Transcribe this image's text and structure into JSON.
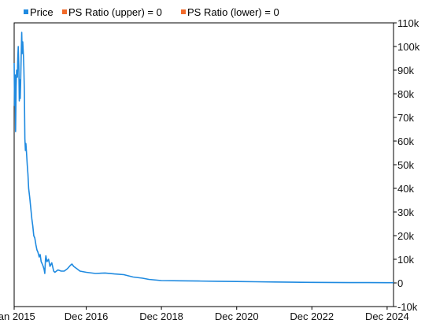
{
  "legend": [
    {
      "label": "Price",
      "color": "#1f8ae0"
    },
    {
      "label": "PS Ratio (upper) = 0",
      "color": "#f26b2b"
    },
    {
      "label": "PS Ratio (lower) = 0",
      "color": "#f26b2b"
    }
  ],
  "chart_data": {
    "type": "line",
    "title": "",
    "xlabel": "",
    "ylabel": "",
    "grid": false,
    "legend_position": "top-left",
    "x_tick_labels": [
      "Jan 2015",
      "Dec 2016",
      "Dec 2018",
      "Dec 2020",
      "Dec 2022",
      "Dec 2024"
    ],
    "x_tick_dates": [
      "2015-01-01",
      "2016-12-01",
      "2018-12-01",
      "2020-12-01",
      "2022-12-01",
      "2024-12-01"
    ],
    "xlim": [
      "2015-01-01",
      "2025-02-01"
    ],
    "y_tick_labels": [
      "110k",
      "100k",
      "90k",
      "80k",
      "70k",
      "60k",
      "50k",
      "40k",
      "30k",
      "20k",
      "10k",
      "0",
      "-10k"
    ],
    "y_tick_values": [
      110000,
      100000,
      90000,
      80000,
      70000,
      60000,
      50000,
      40000,
      30000,
      20000,
      10000,
      0,
      -10000
    ],
    "ylim": [
      -10000,
      110000
    ],
    "series": [
      {
        "name": "Price",
        "color": "#1f8ae0",
        "points": [
          [
            "2015-01-01",
            93000
          ],
          [
            "2015-01-05",
            75000
          ],
          [
            "2015-01-10",
            88000
          ],
          [
            "2015-01-15",
            64000
          ],
          [
            "2015-01-20",
            83000
          ],
          [
            "2015-01-25",
            90000
          ],
          [
            "2015-02-01",
            87000
          ],
          [
            "2015-02-05",
            95000
          ],
          [
            "2015-02-10",
            100000
          ],
          [
            "2015-02-15",
            92000
          ],
          [
            "2015-02-20",
            77000
          ],
          [
            "2015-02-25",
            86000
          ],
          [
            "2015-03-01",
            78000
          ],
          [
            "2015-03-05",
            84000
          ],
          [
            "2015-03-10",
            96000
          ],
          [
            "2015-03-15",
            106000
          ],
          [
            "2015-03-20",
            97000
          ],
          [
            "2015-03-25",
            102000
          ],
          [
            "2015-04-01",
            96000
          ],
          [
            "2015-04-05",
            91000
          ],
          [
            "2015-04-10",
            80000
          ],
          [
            "2015-04-15",
            61000
          ],
          [
            "2015-04-20",
            56000
          ],
          [
            "2015-04-25",
            59000
          ],
          [
            "2015-05-01",
            55000
          ],
          [
            "2015-05-08",
            50000
          ],
          [
            "2015-05-15",
            46000
          ],
          [
            "2015-05-22",
            40000
          ],
          [
            "2015-06-01",
            36000
          ],
          [
            "2015-06-08",
            33000
          ],
          [
            "2015-06-15",
            30000
          ],
          [
            "2015-06-22",
            27000
          ],
          [
            "2015-07-01",
            24000
          ],
          [
            "2015-07-10",
            20000
          ],
          [
            "2015-07-20",
            19000
          ],
          [
            "2015-08-01",
            16000
          ],
          [
            "2015-08-10",
            14000
          ],
          [
            "2015-08-20",
            13000
          ],
          [
            "2015-09-01",
            11000
          ],
          [
            "2015-09-10",
            12000
          ],
          [
            "2015-09-20",
            9000
          ],
          [
            "2015-10-01",
            8000
          ],
          [
            "2015-10-10",
            7000
          ],
          [
            "2015-10-20",
            5500
          ],
          [
            "2015-10-25",
            4000
          ],
          [
            "2015-11-01",
            10000
          ],
          [
            "2015-11-05",
            11500
          ],
          [
            "2015-11-15",
            9000
          ],
          [
            "2015-12-01",
            10000
          ],
          [
            "2015-12-15",
            7000
          ],
          [
            "2016-01-01",
            8500
          ],
          [
            "2016-01-20",
            5000
          ],
          [
            "2016-02-01",
            4500
          ],
          [
            "2016-03-01",
            5500
          ],
          [
            "2016-04-01",
            5000
          ],
          [
            "2016-05-01",
            5000
          ],
          [
            "2016-06-01",
            6000
          ],
          [
            "2016-07-01",
            7500
          ],
          [
            "2016-07-15",
            8000
          ],
          [
            "2016-08-01",
            7000
          ],
          [
            "2016-09-01",
            6000
          ],
          [
            "2016-10-01",
            5000
          ],
          [
            "2016-12-01",
            4500
          ],
          [
            "2017-03-01",
            4000
          ],
          [
            "2017-06-01",
            4200
          ],
          [
            "2017-09-01",
            3800
          ],
          [
            "2017-12-01",
            3500
          ],
          [
            "2018-03-01",
            2500
          ],
          [
            "2018-06-01",
            2000
          ],
          [
            "2018-08-01",
            1500
          ],
          [
            "2018-12-01",
            1000
          ],
          [
            "2019-06-01",
            900
          ],
          [
            "2019-12-01",
            800
          ],
          [
            "2020-06-01",
            700
          ],
          [
            "2020-12-01",
            600
          ],
          [
            "2021-06-01",
            500
          ],
          [
            "2021-12-01",
            400
          ],
          [
            "2022-06-01",
            300
          ],
          [
            "2022-12-01",
            250
          ],
          [
            "2023-06-01",
            200
          ],
          [
            "2023-12-01",
            150
          ],
          [
            "2024-06-01",
            120
          ],
          [
            "2024-12-01",
            100
          ],
          [
            "2025-02-01",
            100
          ]
        ]
      }
    ]
  }
}
